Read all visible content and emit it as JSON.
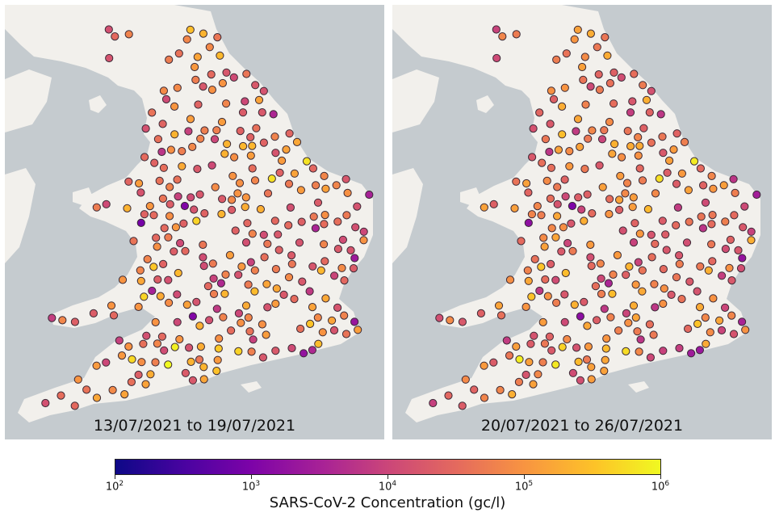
{
  "map": {
    "panels": [
      {
        "label": "13/07/2021 to 19/07/2021"
      },
      {
        "label": "20/07/2021 to 26/07/2021"
      }
    ],
    "colors": {
      "land": "#f2f0ec",
      "sea": "#c5cbcf",
      "marker_edge": "#3a2a36"
    }
  },
  "colorbar": {
    "label": "SARS-CoV-2 Concentration (gc/l)",
    "ticks": [
      {
        "base": "10",
        "exp": "2"
      },
      {
        "base": "10",
        "exp": "3"
      },
      {
        "base": "10",
        "exp": "4"
      },
      {
        "base": "10",
        "exp": "5"
      },
      {
        "base": "10",
        "exp": "6"
      }
    ],
    "min_exponent": 2,
    "max_exponent": 6,
    "colormap": "plasma"
  }
}
